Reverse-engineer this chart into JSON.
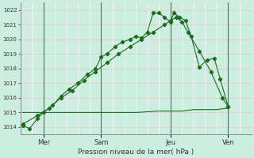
{
  "bg_color": "#cceee0",
  "plot_bg_color": "#cceee0",
  "grid_color_h": "#e8c8c8",
  "grid_color_v": "#ffffff",
  "line_color": "#1a6b1a",
  "ylabel": "Pression niveau de la mer( hPa )",
  "ylim": [
    1013.5,
    1022.5
  ],
  "yticks": [
    1014,
    1015,
    1016,
    1017,
    1018,
    1019,
    1020,
    1021,
    1022
  ],
  "day_labels": [
    "Mer",
    "Sam",
    "Jeu",
    "Ven"
  ],
  "day_positions": [
    2,
    7,
    13,
    18
  ],
  "vline_positions": [
    2,
    7,
    13,
    18
  ],
  "xlim": [
    0,
    20
  ],
  "line1_x": [
    0.2,
    0.8,
    1.5,
    2.0,
    2.8,
    3.5,
    4.2,
    5.0,
    5.8,
    6.5,
    7.0,
    7.5,
    8.2,
    8.8,
    9.5,
    10.0,
    10.5,
    11.0,
    11.5,
    12.0,
    12.5,
    13.0,
    13.3,
    13.8,
    14.3,
    14.8,
    15.5,
    16.2,
    16.8,
    17.3,
    18.0
  ],
  "line1_y": [
    1014.1,
    1013.9,
    1014.6,
    1015.0,
    1015.5,
    1016.1,
    1016.6,
    1017.0,
    1017.6,
    1018.0,
    1018.8,
    1019.0,
    1019.5,
    1019.8,
    1020.0,
    1020.2,
    1020.1,
    1020.5,
    1021.8,
    1021.8,
    1021.5,
    1021.2,
    1021.8,
    1021.5,
    1021.3,
    1020.2,
    1018.1,
    1018.6,
    1018.7,
    1017.3,
    1015.4
  ],
  "line2_x": [
    0.2,
    1.5,
    2.5,
    3.5,
    4.5,
    5.5,
    6.5,
    7.5,
    8.5,
    9.5,
    10.5,
    11.5,
    12.5,
    13.0,
    13.5,
    14.0,
    14.5,
    15.5,
    16.5,
    17.5,
    18.0
  ],
  "line2_y": [
    1014.2,
    1014.8,
    1015.3,
    1016.0,
    1016.5,
    1017.2,
    1017.8,
    1018.4,
    1019.0,
    1019.5,
    1020.0,
    1020.5,
    1021.0,
    1021.3,
    1021.5,
    1021.2,
    1020.5,
    1019.2,
    1017.8,
    1016.0,
    1015.4
  ],
  "line3_x": [
    0.2,
    2.0,
    4.0,
    6.0,
    8.0,
    10.0,
    12.0,
    13.0,
    14.0,
    15.0,
    16.0,
    17.0,
    18.0
  ],
  "line3_y": [
    1015.0,
    1015.0,
    1015.0,
    1015.0,
    1015.0,
    1015.0,
    1015.1,
    1015.1,
    1015.1,
    1015.2,
    1015.2,
    1015.2,
    1015.3
  ],
  "figsize": [
    3.2,
    2.0
  ],
  "dpi": 100
}
